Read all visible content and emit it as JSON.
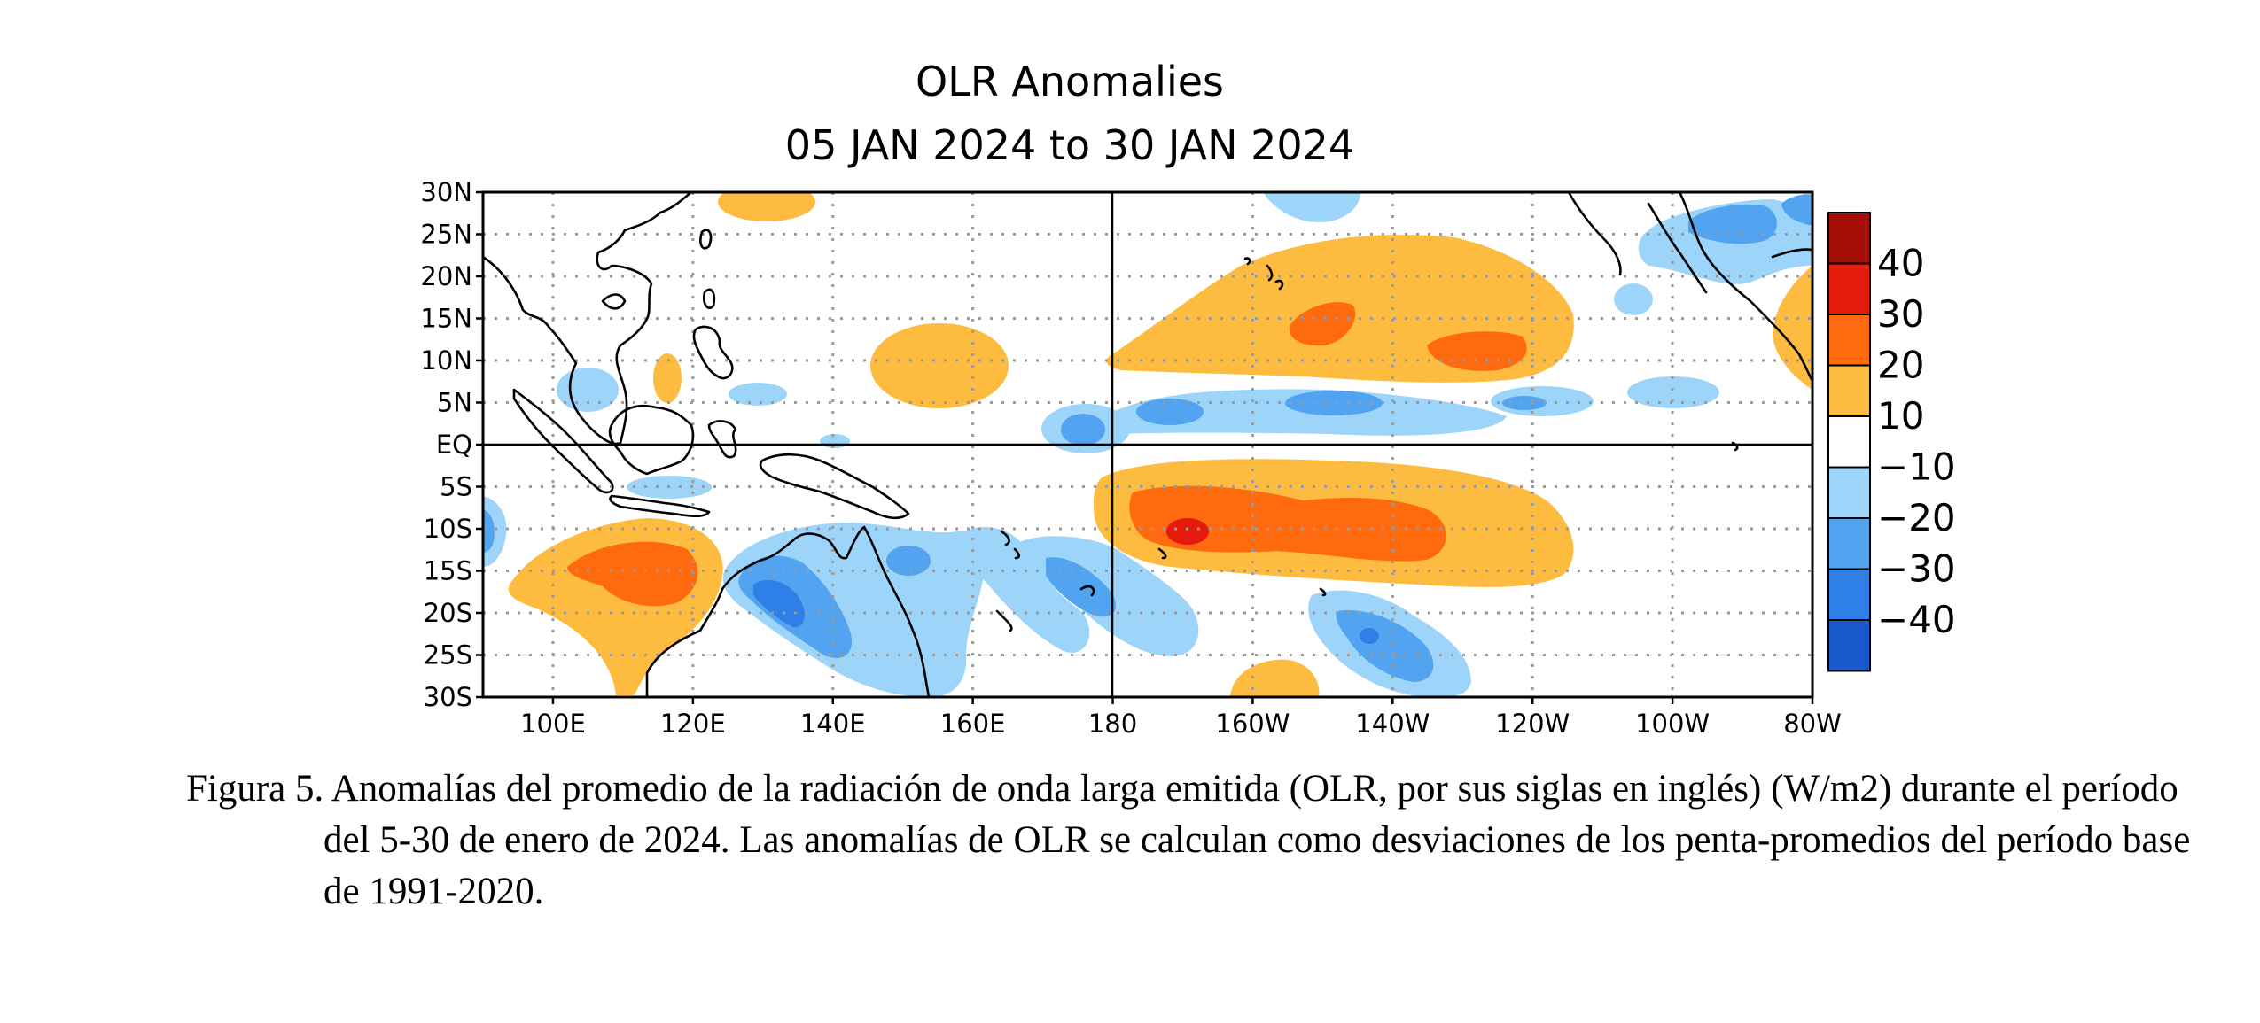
{
  "title": "OLR Anomalies",
  "subtitle": "05 JAN 2024 to 30 JAN 2024",
  "map": {
    "lon_range": [
      90,
      280
    ],
    "lat_range": [
      -30,
      30
    ],
    "lat_ticks": [
      {
        "value": 30,
        "label": "30N"
      },
      {
        "value": 25,
        "label": "25N"
      },
      {
        "value": 20,
        "label": "20N"
      },
      {
        "value": 15,
        "label": "15N"
      },
      {
        "value": 10,
        "label": "10N"
      },
      {
        "value": 5,
        "label": "5N"
      },
      {
        "value": 0,
        "label": "EQ"
      },
      {
        "value": -5,
        "label": "5S"
      },
      {
        "value": -10,
        "label": "10S"
      },
      {
        "value": -15,
        "label": "15S"
      },
      {
        "value": -20,
        "label": "20S"
      },
      {
        "value": -25,
        "label": "25S"
      },
      {
        "value": -30,
        "label": "30S"
      }
    ],
    "lon_ticks": [
      {
        "value": 100,
        "label": "100E"
      },
      {
        "value": 120,
        "label": "120E"
      },
      {
        "value": 140,
        "label": "140E"
      },
      {
        "value": 160,
        "label": "160E"
      },
      {
        "value": 180,
        "label": "180"
      },
      {
        "value": 200,
        "label": "160W"
      },
      {
        "value": 220,
        "label": "140W"
      },
      {
        "value": 240,
        "label": "120W"
      },
      {
        "value": 260,
        "label": "100W"
      },
      {
        "value": 280,
        "label": "80W"
      }
    ],
    "colors": {
      "pos10": "#fdbb3f",
      "pos20": "#fe6a0d",
      "pos30": "#e31a0c",
      "pos40": "#a50f07",
      "neg10": "#9dd4fa",
      "neg20": "#52a4f0",
      "neg30": "#2e7fe6",
      "neg40": "#1959cc",
      "coast": "#000000",
      "grid": "#9a9a9a"
    },
    "colorbar": {
      "labels": [
        "40",
        "30",
        "20",
        "10",
        "−10",
        "−20",
        "−30",
        "−40"
      ],
      "colors": [
        "#a50f07",
        "#e31a0c",
        "#fe6a0d",
        "#fdbb3f",
        "#ffffff",
        "#9dd4fa",
        "#52a4f0",
        "#2e7fe6",
        "#1959cc"
      ]
    }
  },
  "caption": {
    "text": "Figura 5. Anomalías del promedio de la radiación de onda larga emitida (OLR, por sus siglas en inglés) (W/m2) durante el período del 5-30 de enero de 2024.  Las anomalías de OLR se calculan como desviaciones de los penta-promedios del período base de 1991-2020."
  }
}
